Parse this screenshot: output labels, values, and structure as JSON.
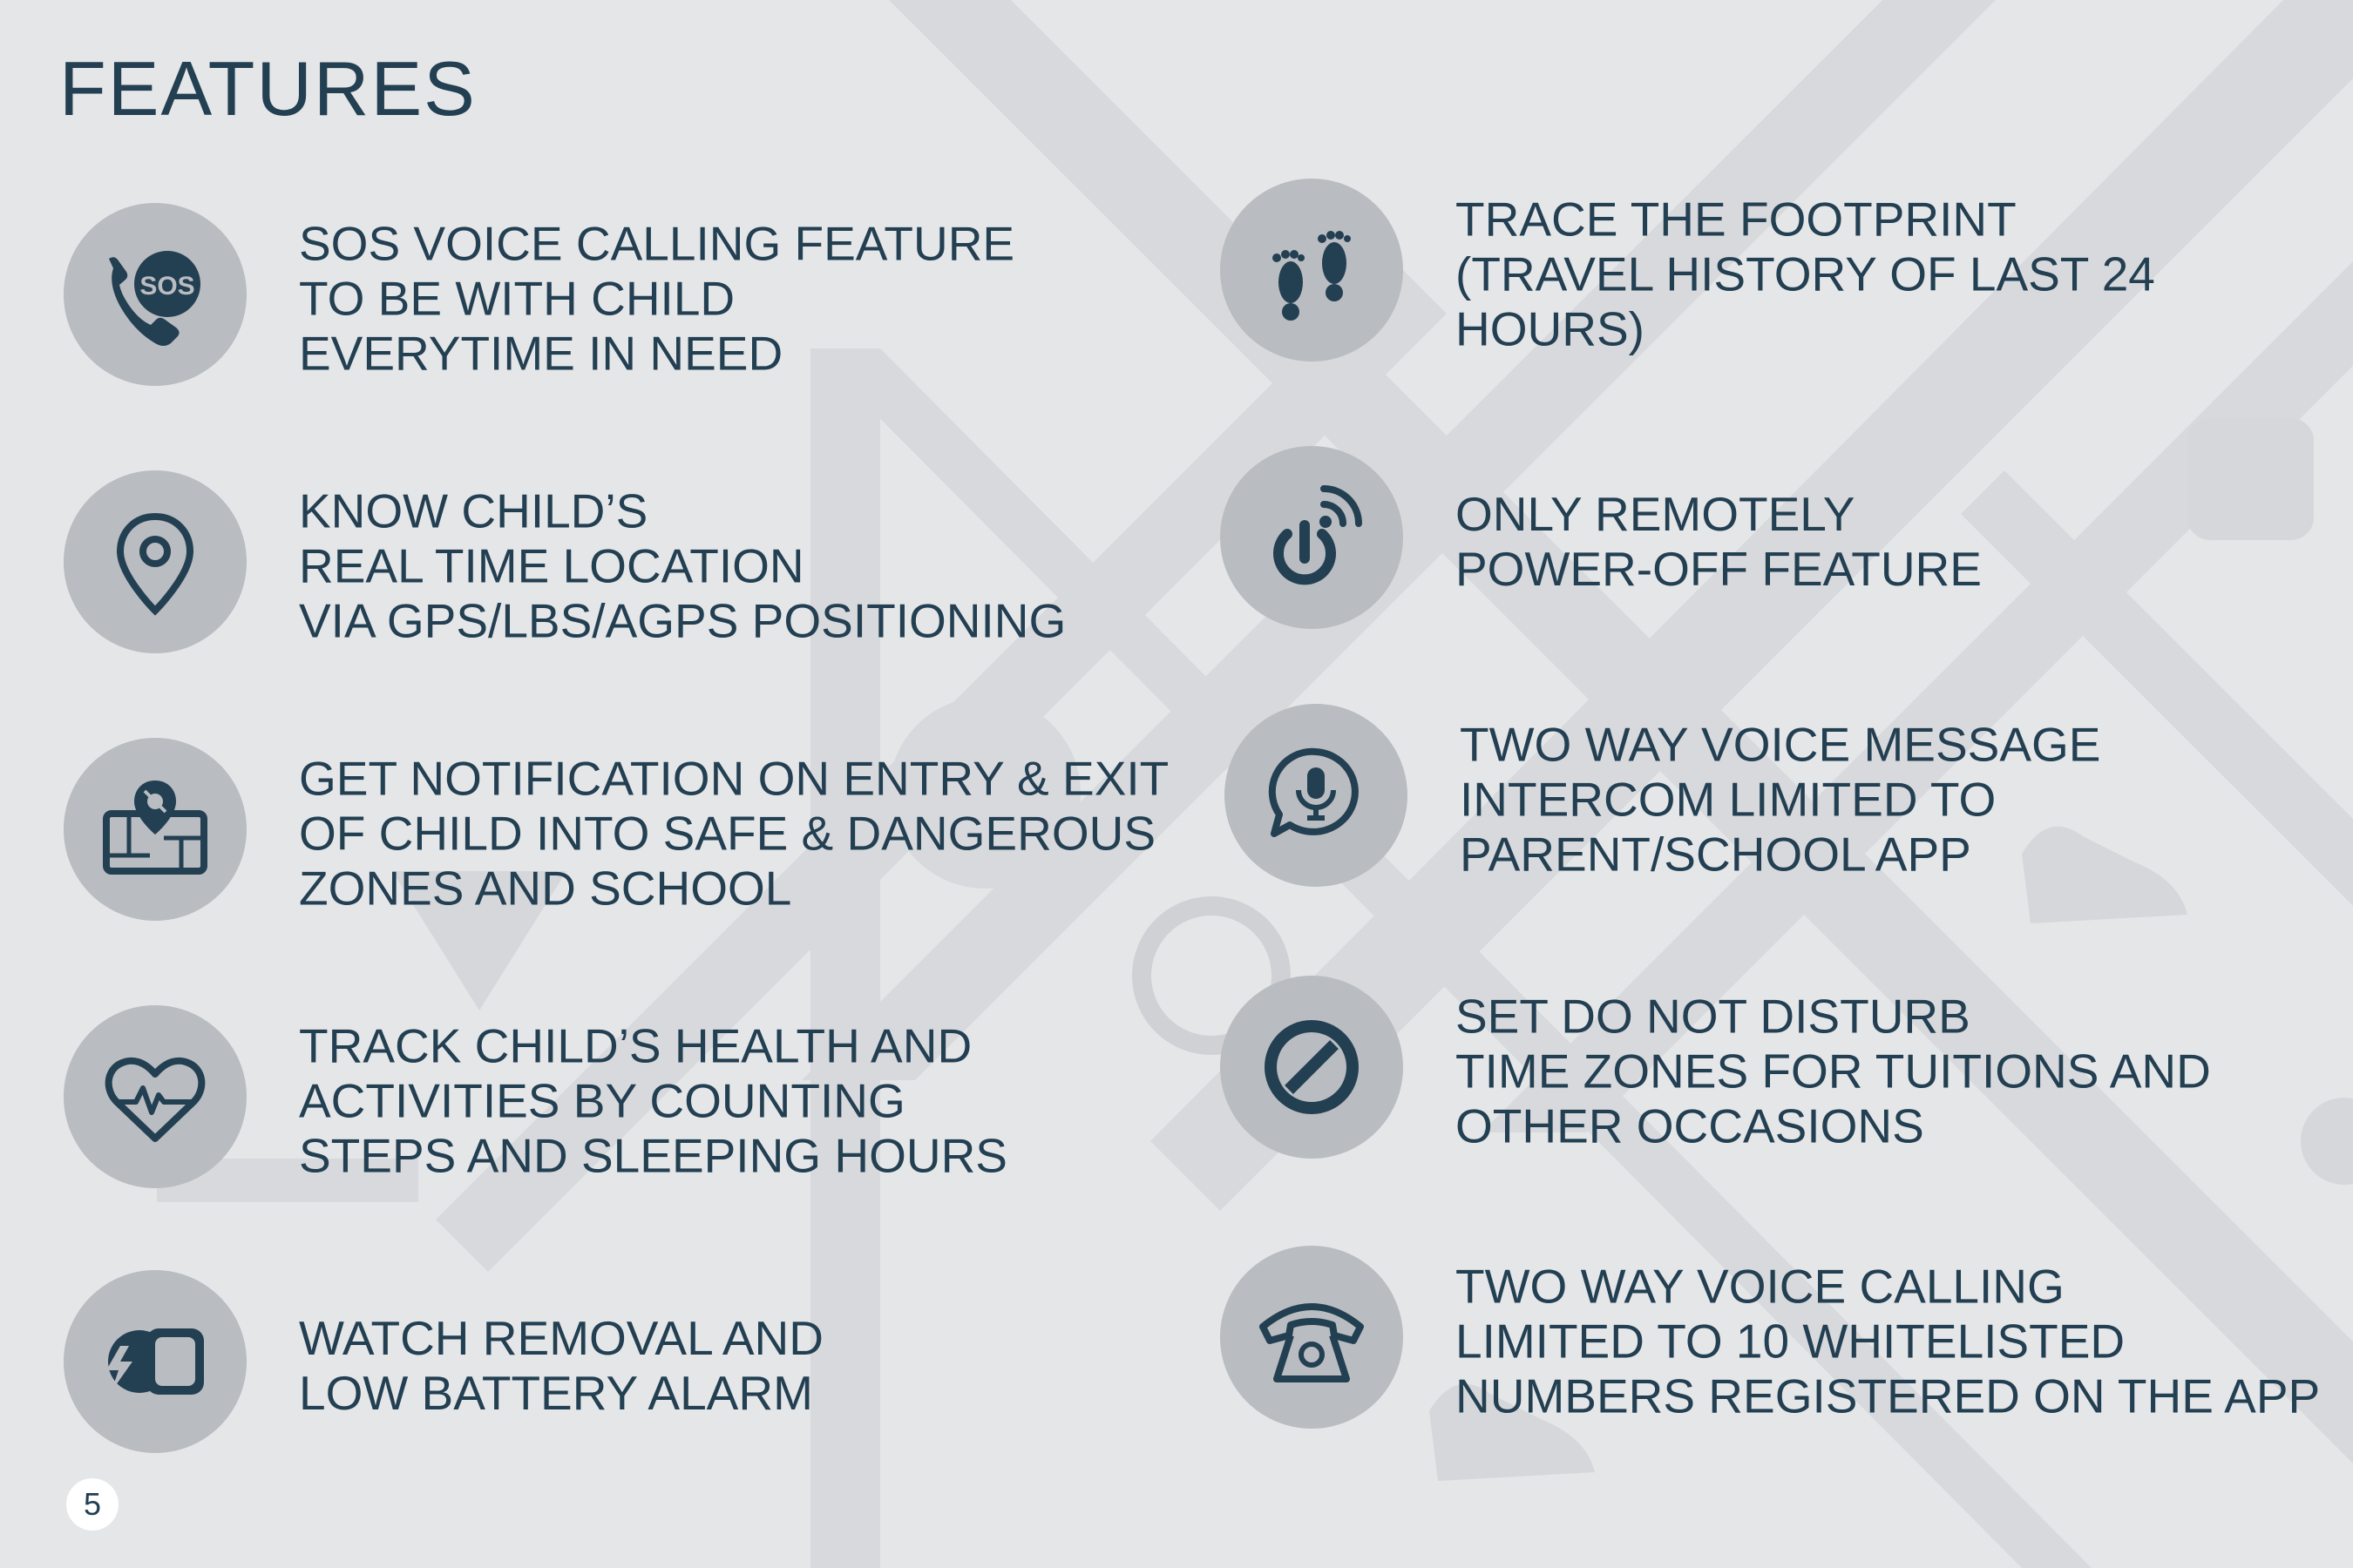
{
  "title": "FEATURES",
  "page_number": "5",
  "colors": {
    "background": "#e5e6e8",
    "text": "#233f52",
    "icon_circle": "#b9bcc0",
    "background_shapes": "#d6d7da"
  },
  "features_left": [
    {
      "icon": "sos-phone-icon",
      "lines": [
        "SOS VOICE CALLING FEATURE",
        "TO BE WITH CHILD",
        "EVERYTIME IN NEED"
      ]
    },
    {
      "icon": "location-pin-icon",
      "lines": [
        "KNOW CHILD’S",
        "REAL TIME LOCATION",
        "VIA GPS/LBS/AGPS POSITIONING"
      ]
    },
    {
      "icon": "geofence-map-icon",
      "lines": [
        "GET NOTIFICATION ON ENTRY & EXIT",
        "OF CHILD INTO SAFE & DANGEROUS",
        "ZONES AND SCHOOL"
      ]
    },
    {
      "icon": "heart-pulse-icon",
      "lines": [
        "TRACK CHILD’S HEALTH AND",
        "ACTIVITIES BY COUNTING",
        "STEPS AND SLEEPING HOURS"
      ]
    },
    {
      "icon": "watch-alarm-icon",
      "lines": [
        "WATCH REMOVAL AND",
        "LOW BATTERY ALARM"
      ]
    }
  ],
  "features_right": [
    {
      "icon": "footprints-icon",
      "lines": [
        "TRACE THE FOOTPRINT",
        "(TRAVEL HISTORY OF LAST 24",
        "HOURS)"
      ]
    },
    {
      "icon": "remote-power-icon",
      "lines": [
        "ONLY REMOTELY",
        "POWER-OFF FEATURE"
      ]
    },
    {
      "icon": "voice-message-icon",
      "lines": [
        "TWO WAY VOICE MESSAGE",
        "INTERCOM LIMITED TO",
        "PARENT/SCHOOL APP"
      ]
    },
    {
      "icon": "do-not-disturb-icon",
      "lines": [
        "SET DO NOT DISTURB",
        "TIME ZONES FOR TUITIONS AND",
        "OTHER OCCASIONS"
      ]
    },
    {
      "icon": "telephone-icon",
      "lines": [
        "TWO WAY VOICE CALLING",
        "LIMITED TO 10 WHITELISTED",
        "NUMBERS REGISTERED ON THE APP"
      ]
    }
  ]
}
